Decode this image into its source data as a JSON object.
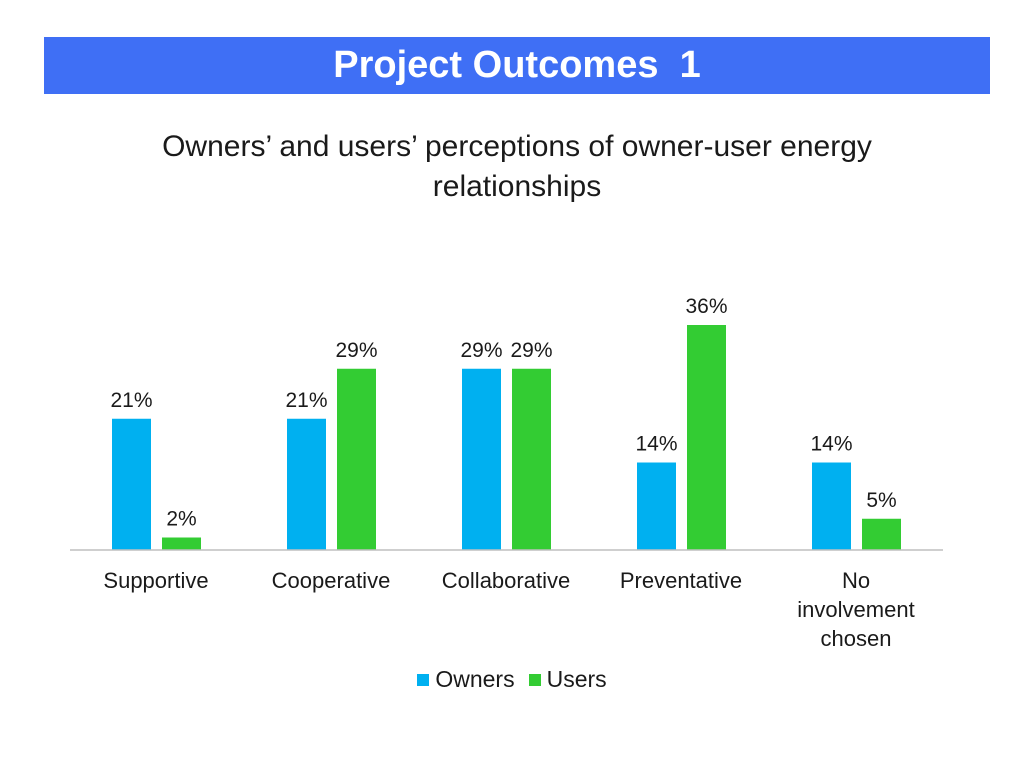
{
  "title": "Project Outcomes  1",
  "subtitle": "Owners’ and users’ perceptions of owner-user energy relationships",
  "colors": {
    "title_bar": "#3f6ff5",
    "owners": "#00b0f0",
    "users": "#33cc33",
    "axis": "#bfbfbf"
  },
  "chart_data": {
    "type": "bar",
    "categories": [
      [
        "Supportive"
      ],
      [
        "Cooperative"
      ],
      [
        "Collaborative"
      ],
      [
        "Preventative"
      ],
      [
        "No",
        "involvement",
        "chosen"
      ]
    ],
    "series": [
      {
        "name": "Owners",
        "values": [
          21,
          21,
          29,
          14,
          14
        ],
        "labels": [
          "21%",
          "21%",
          "29%",
          "14%",
          "14%"
        ]
      },
      {
        "name": "Users",
        "values": [
          2,
          29,
          29,
          36,
          5
        ],
        "labels": [
          "2%",
          "29%",
          "29%",
          "36%",
          "5%"
        ]
      }
    ],
    "unit": "%",
    "ylim": [
      0,
      36
    ],
    "grid": false,
    "legend": "bottom-center"
  }
}
